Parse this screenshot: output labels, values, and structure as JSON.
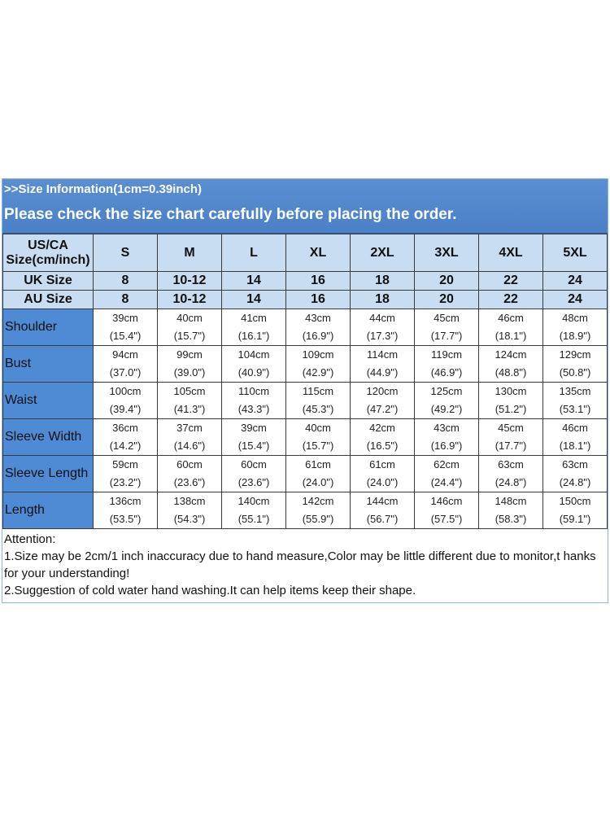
{
  "banner": {
    "subtitle": ">>Size Information(1cm=0.39inch)",
    "title": "Please check the size chart carefully before placing the order."
  },
  "header": {
    "corner": [
      "US/CA",
      "Size(cm/inch)"
    ],
    "sizes": [
      "S",
      "M",
      "L",
      "XL",
      "2XL",
      "3XL",
      "4XL",
      "5XL"
    ]
  },
  "uk": {
    "label": "UK Size",
    "values": [
      "8",
      "10-12",
      "14",
      "16",
      "18",
      "20",
      "22",
      "24"
    ]
  },
  "au": {
    "label": "AU Size",
    "values": [
      "8",
      "10-12",
      "14",
      "16",
      "18",
      "20",
      "22",
      "24"
    ]
  },
  "rows": [
    {
      "label": "Shoulder",
      "cm": [
        "39cm",
        "40cm",
        "41cm",
        "43cm",
        "44cm",
        "45cm",
        "46cm",
        "48cm"
      ],
      "inch": [
        "(15.4\")",
        "(15.7\")",
        "(16.1\")",
        "(16.9\")",
        "(17.3\")",
        "(17.7\")",
        "(18.1\")",
        "(18.9\")"
      ]
    },
    {
      "label": "Bust",
      "cm": [
        "94cm",
        "99cm",
        "104cm",
        "109cm",
        "114cm",
        "119cm",
        "124cm",
        "129cm"
      ],
      "inch": [
        "(37.0\")",
        "(39.0\")",
        "(40.9\")",
        "(42.9\")",
        "(44.9\")",
        "(46.9\")",
        "(48.8\")",
        "(50.8\")"
      ]
    },
    {
      "label": "Waist",
      "cm": [
        "100cm",
        "105cm",
        "110cm",
        "115cm",
        "120cm",
        "125cm",
        "130cm",
        "135cm"
      ],
      "inch": [
        "(39.4\")",
        "(41.3\")",
        "(43.3\")",
        "(45.3\")",
        "(47.2\")",
        "(49.2\")",
        "(51.2\")",
        "(53.1\")"
      ]
    },
    {
      "label": "Sleeve Width",
      "cm": [
        "36cm",
        "37cm",
        "39cm",
        "40cm",
        "42cm",
        "43cm",
        "45cm",
        "46cm"
      ],
      "inch": [
        "(14.2\")",
        "(14.6\")",
        "(15.4\")",
        "(15.7\")",
        "(16.5\")",
        "(16.9\")",
        "(17.7\")",
        "(18.1\")"
      ]
    },
    {
      "label": "Sleeve Length",
      "cm": [
        "59cm",
        "60cm",
        "60cm",
        "61cm",
        "61cm",
        "62cm",
        "63cm",
        "63cm"
      ],
      "inch": [
        "(23.2\")",
        "(23.6\")",
        "(23.6\")",
        "(24.0\")",
        "(24.0\")",
        "(24.4\")",
        "(24.8\")",
        "(24.8\")"
      ]
    },
    {
      "label": "Length",
      "cm": [
        "136cm",
        "138cm",
        "140cm",
        "142cm",
        "144cm",
        "146cm",
        "148cm",
        "150cm"
      ],
      "inch": [
        "(53.5\")",
        "(54.3\")",
        "(55.1\")",
        "(55.9\")",
        "(56.7\")",
        "(57.5\")",
        "(58.3\")",
        "(59.1\")"
      ]
    }
  ],
  "notes": [
    "Attention:",
    "1.Size may be 2cm/1 inch inaccuracy due to hand measure,Color may be little different due to monitor,t hanks for your understanding!",
    "2.Suggestion of cold water hand washing.It can help items keep their shape."
  ],
  "colors": {
    "banner_blue": "#4f85cc",
    "header_light_blue": "#c9ddf2",
    "label_blue": "#4f8ad4"
  }
}
